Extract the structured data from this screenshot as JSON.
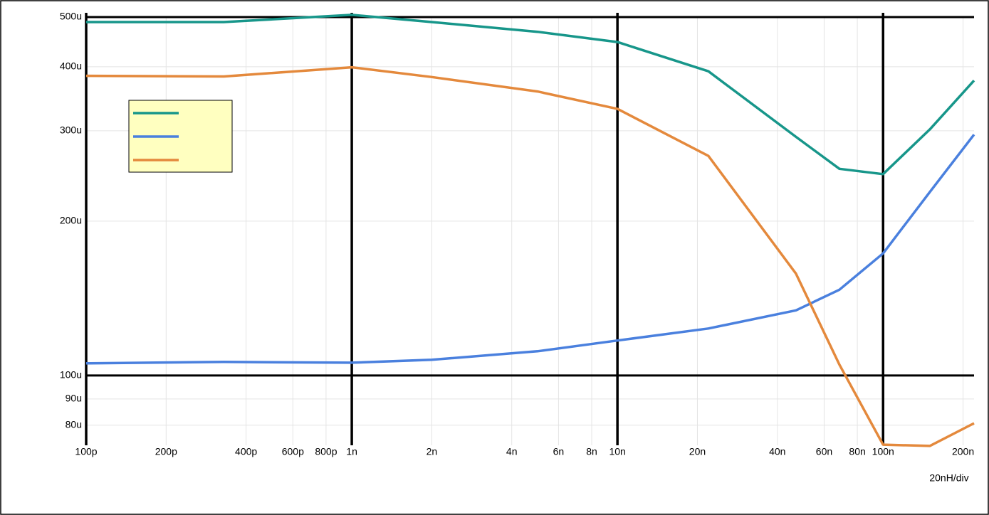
{
  "chart_data": {
    "type": "line",
    "log_x": true,
    "log_y": true,
    "grid": true,
    "annotation": "20nH/div",
    "x": [
      1e-10,
      3.3e-10,
      1e-09,
      2e-09,
      5e-09,
      1e-08,
      2.2e-08,
      4.7e-08,
      6.85e-08,
      1e-07,
      1.5e-07,
      2.2e-07
    ],
    "series": [
      {
        "color": "#17968a",
        "values": [
          0.000489,
          0.000489,
          0.000505,
          0.000489,
          0.000468,
          0.000447,
          0.000392,
          0.000292,
          0.000253,
          0.000247,
          0.000302,
          0.000376
        ]
      },
      {
        "color": "#4a80de",
        "values": [
          0.0001056,
          0.0001063,
          0.0001059,
          0.0001073,
          0.0001115,
          0.000117,
          0.0001235,
          0.000134,
          0.000147,
          0.000173,
          0.000228,
          0.000295
        ]
      },
      {
        "color": "#e4893c",
        "values": [
          0.000384,
          0.000383,
          0.000399,
          0.000382,
          0.000358,
          0.000331,
          0.000268,
          0.000158,
          0.000105,
          7.33e-05,
          7.29e-05,
          8.07e-05
        ]
      }
    ],
    "xlim": [
      1e-10,
      2.2e-07
    ],
    "ylim": [
      7.31e-05,
      0.0005
    ],
    "xticks": [
      {
        "value": 1e-10,
        "label": "100p"
      },
      {
        "value": 2e-10,
        "label": "200p"
      },
      {
        "value": 4e-10,
        "label": "400p"
      },
      {
        "value": 6e-10,
        "label": "600p"
      },
      {
        "value": 8e-10,
        "label": "800p"
      },
      {
        "value": 1e-09,
        "label": "1n"
      },
      {
        "value": 2e-09,
        "label": "2n"
      },
      {
        "value": 4e-09,
        "label": "4n"
      },
      {
        "value": 6e-09,
        "label": "6n"
      },
      {
        "value": 8e-09,
        "label": "8n"
      },
      {
        "value": 1e-08,
        "label": "10n"
      },
      {
        "value": 2e-08,
        "label": "20n"
      },
      {
        "value": 4e-08,
        "label": "40n"
      },
      {
        "value": 6e-08,
        "label": "60n"
      },
      {
        "value": 8e-08,
        "label": "80n"
      },
      {
        "value": 1e-07,
        "label": "100n"
      },
      {
        "value": 2e-07,
        "label": "200n"
      }
    ],
    "yticks": [
      {
        "value": 8e-05,
        "label": "80u"
      },
      {
        "value": 9e-05,
        "label": "90u"
      },
      {
        "value": 0.0001,
        "label": "100u"
      },
      {
        "value": 0.0002,
        "label": "200u"
      },
      {
        "value": 0.0003,
        "label": "300u"
      },
      {
        "value": 0.0004,
        "label": "400u"
      },
      {
        "value": 0.0005,
        "label": "500u"
      }
    ]
  }
}
